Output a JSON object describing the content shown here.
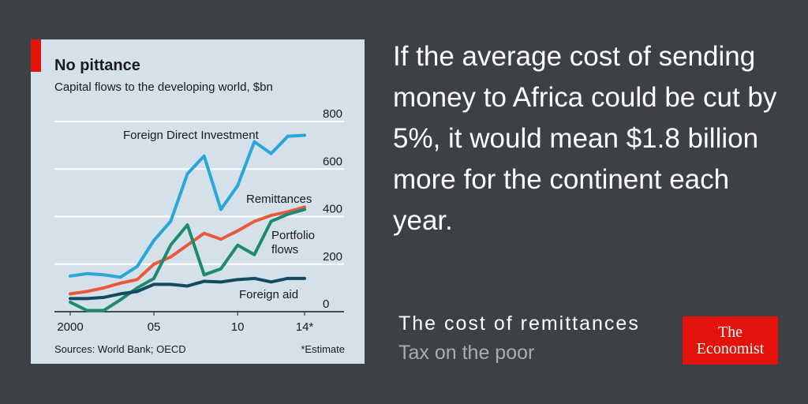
{
  "headline": "If the average cost of sending money to Africa could be cut by 5%, it would mean $1.8 billion more for the continent each year.",
  "article": {
    "title": "The cost of remittances",
    "subtitle": "Tax on the poor"
  },
  "logo": {
    "line1": "The",
    "line2": "Economist"
  },
  "colors": {
    "background": "#3d4044",
    "card": "#d4e0ea",
    "accent": "#e3120b",
    "fdi": "#2ba6d8",
    "remittances": "#e85a3a",
    "portfolio": "#1f8a73",
    "aid": "#154a5e"
  },
  "chart_data": {
    "type": "line",
    "title": "No pittance",
    "subtitle": "Capital flows to the developing world, $bn",
    "sources": "Sources: World Bank; OECD",
    "note": "*Estimate",
    "x": [
      2000,
      2001,
      2002,
      2003,
      2004,
      2005,
      2006,
      2007,
      2008,
      2009,
      2010,
      2011,
      2012,
      2013,
      2014
    ],
    "x_tick_labels": [
      "2000",
      "05",
      "10",
      "14*"
    ],
    "x_tick_values": [
      2000,
      2005,
      2010,
      2014
    ],
    "y_ticks": [
      0,
      200,
      400,
      600,
      800
    ],
    "ylim": [
      0,
      800
    ],
    "grid": true,
    "series": [
      {
        "name": "Foreign Direct Investment",
        "color_key": "fdi",
        "values": [
          150,
          160,
          155,
          145,
          190,
          300,
          380,
          580,
          655,
          430,
          530,
          715,
          665,
          738,
          742
        ]
      },
      {
        "name": "Remittances",
        "color_key": "remittances",
        "values": [
          75,
          85,
          100,
          120,
          135,
          200,
          230,
          280,
          330,
          305,
          340,
          380,
          405,
          420,
          440
        ]
      },
      {
        "name": "Portfolio flows",
        "label_lines": [
          "Portfolio",
          "flows"
        ],
        "color_key": "portfolio",
        "values": [
          40,
          5,
          5,
          50,
          100,
          140,
          280,
          365,
          155,
          180,
          280,
          240,
          380,
          410,
          430
        ]
      },
      {
        "name": "Foreign aid",
        "color_key": "aid",
        "values": [
          55,
          55,
          60,
          75,
          85,
          115,
          115,
          108,
          128,
          125,
          135,
          140,
          125,
          140,
          140
        ]
      }
    ]
  }
}
